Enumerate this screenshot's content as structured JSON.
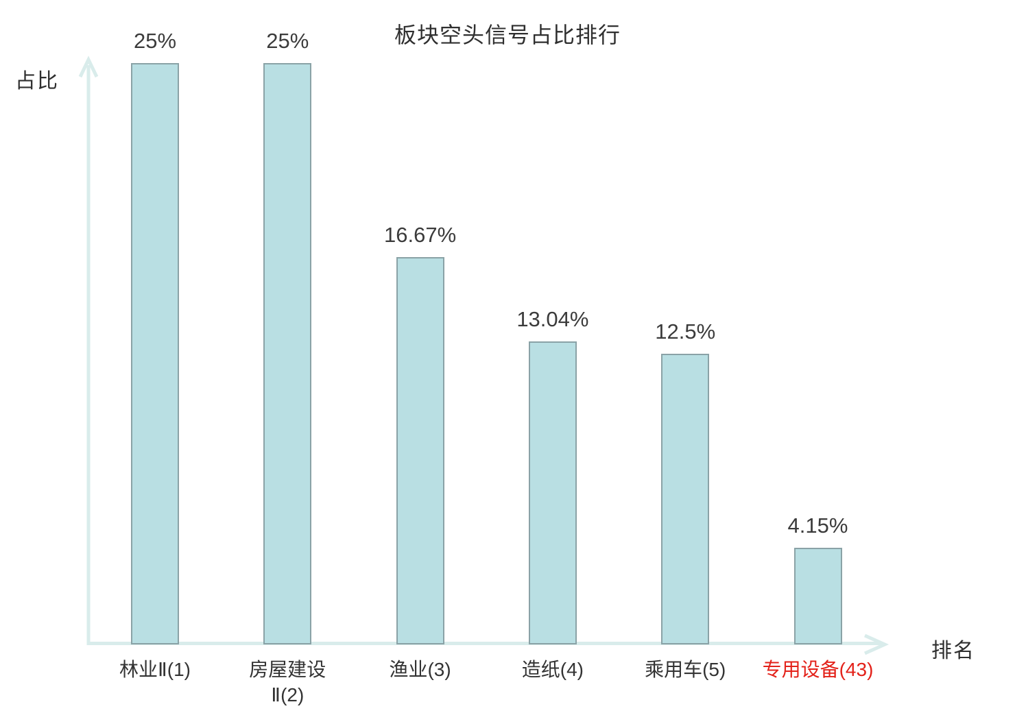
{
  "chart_data": {
    "type": "bar",
    "title": "板块空头信号占比排行",
    "xlabel": "排名",
    "ylabel": "占比",
    "categories": [
      "林业Ⅱ(1)",
      "房屋建设\nⅡ(2)",
      "渔业(3)",
      "造纸(4)",
      "乘用车(5)",
      "专用设备(43)"
    ],
    "values": [
      25,
      25,
      16.67,
      13.04,
      12.5,
      4.15
    ],
    "value_labels": [
      "25%",
      "25%",
      "16.67%",
      "13.04%",
      "12.5%",
      "4.15%"
    ],
    "highlight_index": 5,
    "ylim": [
      0,
      25
    ],
    "grid": false,
    "legend": null,
    "layout_hint": "single series, value labels above bars, arrow axes, no gridlines, no tick marks",
    "colors": {
      "bar_fill": "#b9dfe3",
      "bar_border": "#8aa2a6",
      "axis": "#d9eceb",
      "value_text": "#3b3b3b",
      "category_text": "#333333",
      "highlight_text": "#e32119",
      "background": "#ffffff"
    }
  }
}
